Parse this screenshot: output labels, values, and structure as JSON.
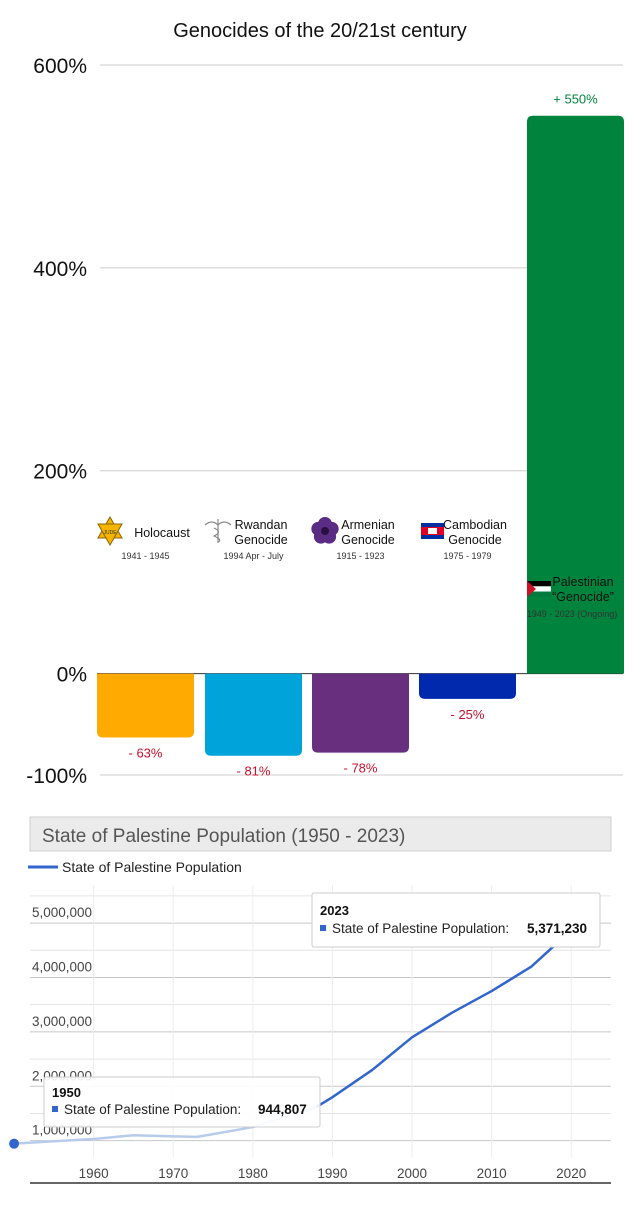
{
  "chart_data": [
    {
      "type": "bar",
      "title": "Genocides of the 20/21st century",
      "ylim": [
        -100,
        600
      ],
      "yticks": [
        "600%",
        "400%",
        "200%",
        "0%",
        "-100%"
      ],
      "ytick_values": [
        600,
        400,
        200,
        0,
        -100
      ],
      "grid": true,
      "bars": [
        {
          "name": "Holocaust",
          "name_lines": [
            "Holocaust"
          ],
          "dates": "1941 - 1945",
          "value": -63,
          "label": "- 63%",
          "color": "#FFAA00",
          "icon": "star-of-david-icon",
          "icon_text": "JUDE"
        },
        {
          "name": "Rwandan Genocide",
          "name_lines": [
            "Rwandan",
            "Genocide"
          ],
          "dates": "1994 Apr - July",
          "value": -81,
          "label": "- 81%",
          "color": "#00A3DA",
          "icon": "caduceus-icon"
        },
        {
          "name": "Armenian Genocide",
          "name_lines": [
            "Armenian",
            "Genocide"
          ],
          "dates": "1915 - 1923",
          "value": -78,
          "label": "- 78%",
          "color": "#692F7F",
          "icon": "forget-me-not-icon"
        },
        {
          "name": "Cambodian Genocide",
          "name_lines": [
            "Cambodian",
            "Genocide"
          ],
          "dates": "1975 - 1979",
          "value": -25,
          "label": "- 25%",
          "color": "#0029AE",
          "icon": "cambodia-flag-icon"
        },
        {
          "name": "Palestinian “Genocide”",
          "name_lines": [
            "Palestinian",
            "“Genocide”"
          ],
          "dates": "1949 - 2023 (Ongoing)",
          "value": 550,
          "label": "+ 550%",
          "color": "#00843D",
          "icon": "palestine-flag-icon"
        }
      ],
      "colors": {
        "negative_label": "#C8102E",
        "positive_label": "#00843D",
        "grid": "#CCCCCC"
      }
    },
    {
      "type": "line",
      "title": "State of Palestine Population (1950 - 2023)",
      "legend": "State of Palestine Population",
      "legend_position": "top-left",
      "xlim": [
        1952,
        2025
      ],
      "ylim": [
        700000,
        5700000
      ],
      "xticks": [
        1960,
        1970,
        1980,
        1990,
        2000,
        2010,
        2020
      ],
      "yticks": [
        1000000,
        2000000,
        3000000,
        4000000,
        5000000
      ],
      "ytick_labels": [
        "1,000,000",
        "2,000,000",
        "3,000,000",
        "4,000,000",
        "5,000,000"
      ],
      "series": [
        {
          "name": "State of Palestine Population",
          "x": [
            1950,
            1955,
            1960,
            1965,
            1970,
            1973,
            1975,
            1980,
            1985,
            1988,
            1990,
            1995,
            2000,
            2005,
            2010,
            2015,
            2020,
            2023
          ],
          "values": [
            944807,
            990000,
            1030000,
            1100000,
            1080000,
            1070000,
            1120000,
            1250000,
            1480000,
            1620000,
            1800000,
            2300000,
            2900000,
            3350000,
            3750000,
            4200000,
            4870000,
            5371230
          ],
          "color": "#3366CC"
        }
      ],
      "tooltips": [
        {
          "year": "2023",
          "series": "State of Palestine Population:",
          "value": "5,371,230"
        },
        {
          "year": "1950",
          "series": "State of Palestine Population:",
          "value": "944,807"
        }
      ]
    }
  ]
}
